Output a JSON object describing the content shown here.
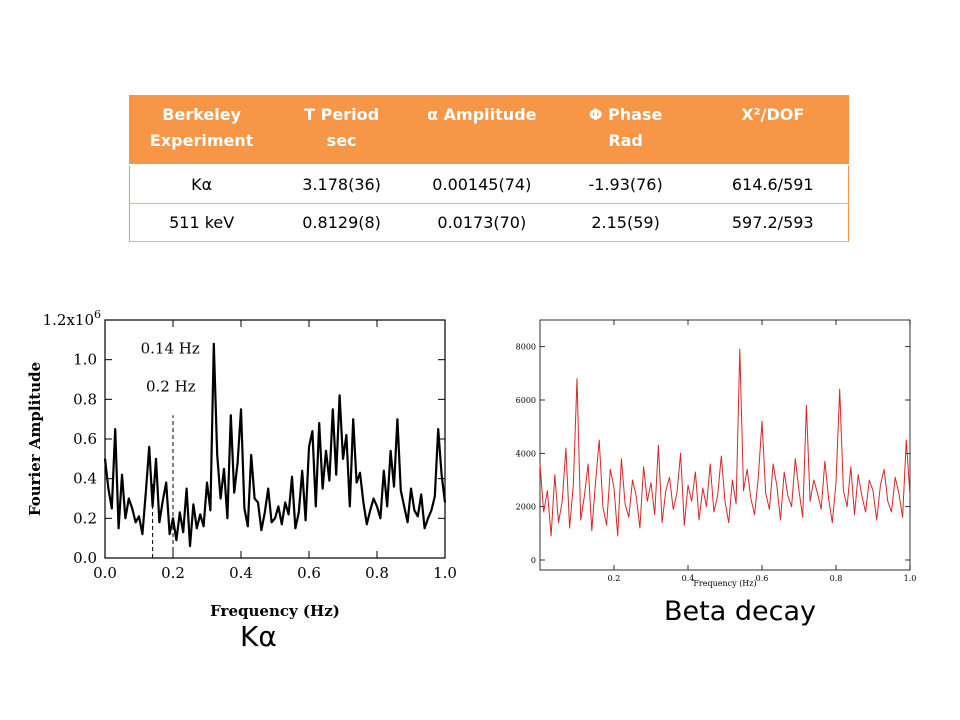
{
  "table": {
    "headers": [
      "Berkeley\nExperiment",
      "T  Period\nsec",
      "α Amplitude",
      "Φ Phase\nRad",
      "Χ²/DOF"
    ],
    "rows": [
      [
        "Kα",
        "3.178(36)",
        "0.00145(74)",
        "-1.93(76)",
        "614.6/591"
      ],
      [
        "511 keV",
        "0.8129(8)",
        "0.0173(70)",
        "2.15(59)",
        "597.2/593"
      ]
    ],
    "header_color": "#f79646"
  },
  "captions": {
    "left": "Kα",
    "right": "Beta decay"
  },
  "chart_data": [
    {
      "type": "line",
      "xlabel": "Frequency (Hz)",
      "ylabel": "Fourier Amplitude",
      "xlim": [
        0.0,
        1.0
      ],
      "ylim": [
        0,
        1200000
      ],
      "xticks": [
        "0.0",
        "0.2",
        "0.4",
        "0.6",
        "0.8",
        "1.0"
      ],
      "yticks": [
        "0.0",
        "0.2",
        "0.4",
        "0.6",
        "0.8",
        "1.0",
        "1.2x10^6"
      ],
      "annotations": [
        {
          "text": "0.14 Hz",
          "x": 0.14
        },
        {
          "text": "0.2 Hz",
          "x": 0.2
        }
      ],
      "color": "#000000",
      "series": [
        {
          "x": [
            0.0,
            0.01,
            0.02,
            0.03,
            0.04,
            0.05,
            0.06,
            0.07,
            0.08,
            0.09,
            0.1,
            0.11,
            0.12,
            0.13,
            0.14,
            0.15,
            0.16,
            0.17,
            0.18,
            0.19,
            0.2,
            0.21,
            0.22,
            0.23,
            0.24,
            0.25,
            0.26,
            0.27,
            0.28,
            0.29,
            0.3,
            0.31,
            0.32,
            0.33,
            0.34,
            0.35,
            0.36,
            0.37,
            0.38,
            0.39,
            0.4,
            0.41,
            0.42,
            0.43,
            0.44,
            0.45,
            0.46,
            0.47,
            0.48,
            0.49,
            0.5,
            0.51,
            0.52,
            0.53,
            0.54,
            0.55,
            0.56,
            0.57,
            0.58,
            0.59,
            0.6,
            0.61,
            0.62,
            0.63,
            0.64,
            0.65,
            0.66,
            0.67,
            0.68,
            0.69,
            0.7,
            0.71,
            0.72,
            0.73,
            0.74,
            0.75,
            0.76,
            0.77,
            0.78,
            0.79,
            0.8,
            0.81,
            0.82,
            0.83,
            0.84,
            0.85,
            0.86,
            0.87,
            0.88,
            0.89,
            0.9,
            0.91,
            0.92,
            0.93,
            0.94,
            0.95,
            0.96,
            0.97,
            0.98,
            0.99,
            1.0
          ],
          "values": [
            500000,
            350000,
            250000,
            650000,
            150000,
            420000,
            200000,
            300000,
            250000,
            180000,
            210000,
            120000,
            330000,
            560000,
            260000,
            500000,
            180000,
            290000,
            380000,
            120000,
            200000,
            90000,
            230000,
            130000,
            350000,
            60000,
            270000,
            150000,
            220000,
            160000,
            380000,
            240000,
            1080000,
            520000,
            300000,
            450000,
            200000,
            720000,
            330000,
            480000,
            750000,
            250000,
            160000,
            520000,
            300000,
            280000,
            140000,
            230000,
            350000,
            180000,
            200000,
            260000,
            170000,
            280000,
            220000,
            410000,
            150000,
            230000,
            440000,
            190000,
            560000,
            640000,
            260000,
            680000,
            350000,
            540000,
            390000,
            750000,
            420000,
            820000,
            500000,
            620000,
            260000,
            700000,
            380000,
            430000,
            280000,
            170000,
            240000,
            300000,
            260000,
            200000,
            440000,
            260000,
            540000,
            360000,
            700000,
            340000,
            260000,
            180000,
            350000,
            240000,
            210000,
            320000,
            150000,
            200000,
            240000,
            310000,
            650000,
            420000,
            280000
          ]
        }
      ]
    },
    {
      "type": "line",
      "xlabel": "Frequency (Hz)",
      "ylabel": "",
      "xlim": [
        0.0,
        1.0
      ],
      "ylim": [
        0,
        9000
      ],
      "xticks": [
        "0.2",
        "0.4",
        "0.6",
        "0.8",
        "1.0"
      ],
      "yticks": [
        "0",
        "2000",
        "4000",
        "6000",
        "8000"
      ],
      "color": "#d62728",
      "series": [
        {
          "x": [
            0.0,
            0.01,
            0.02,
            0.03,
            0.04,
            0.05,
            0.06,
            0.07,
            0.08,
            0.09,
            0.1,
            0.11,
            0.12,
            0.13,
            0.14,
            0.15,
            0.16,
            0.17,
            0.18,
            0.19,
            0.2,
            0.21,
            0.22,
            0.23,
            0.24,
            0.25,
            0.26,
            0.27,
            0.28,
            0.29,
            0.3,
            0.31,
            0.32,
            0.33,
            0.34,
            0.35,
            0.36,
            0.37,
            0.38,
            0.39,
            0.4,
            0.41,
            0.42,
            0.43,
            0.44,
            0.45,
            0.46,
            0.47,
            0.48,
            0.49,
            0.5,
            0.51,
            0.52,
            0.53,
            0.54,
            0.55,
            0.56,
            0.57,
            0.58,
            0.59,
            0.6,
            0.61,
            0.62,
            0.63,
            0.64,
            0.65,
            0.66,
            0.67,
            0.68,
            0.69,
            0.7,
            0.71,
            0.72,
            0.73,
            0.74,
            0.75,
            0.76,
            0.77,
            0.78,
            0.79,
            0.8,
            0.81,
            0.82,
            0.83,
            0.84,
            0.85,
            0.86,
            0.87,
            0.88,
            0.89,
            0.9,
            0.91,
            0.92,
            0.93,
            0.94,
            0.95,
            0.96,
            0.97,
            0.98,
            0.99,
            1.0
          ],
          "values": [
            3600,
            1800,
            2600,
            900,
            3200,
            1400,
            2200,
            4200,
            1200,
            2800,
            6800,
            1500,
            2400,
            3600,
            1100,
            2900,
            4500,
            2000,
            1300,
            3400,
            2700,
            900,
            3800,
            2100,
            1600,
            3000,
            2400,
            1200,
            3500,
            2200,
            2900,
            1700,
            4300,
            1400,
            2600,
            3100,
            1900,
            2500,
            4000,
            1300,
            2800,
            2200,
            3300,
            1500,
            2700,
            2000,
            3600,
            1800,
            2400,
            3900,
            2200,
            1400,
            3000,
            2100,
            7900,
            2600,
            3400,
            2300,
            1700,
            3100,
            5200,
            2500,
            1900,
            3600,
            2800,
            1500,
            3300,
            2400,
            2000,
            3800,
            2600,
            1600,
            5800,
            2200,
            3000,
            2500,
            1900,
            3700,
            2300,
            1400,
            2900,
            6400,
            2600,
            2000,
            3500,
            1700,
            3200,
            2400,
            1800,
            3000,
            2600,
            1500,
            2800,
            3400,
            2200,
            1800,
            3100,
            2500,
            1600,
            4500,
            2400
          ]
        }
      ]
    }
  ]
}
